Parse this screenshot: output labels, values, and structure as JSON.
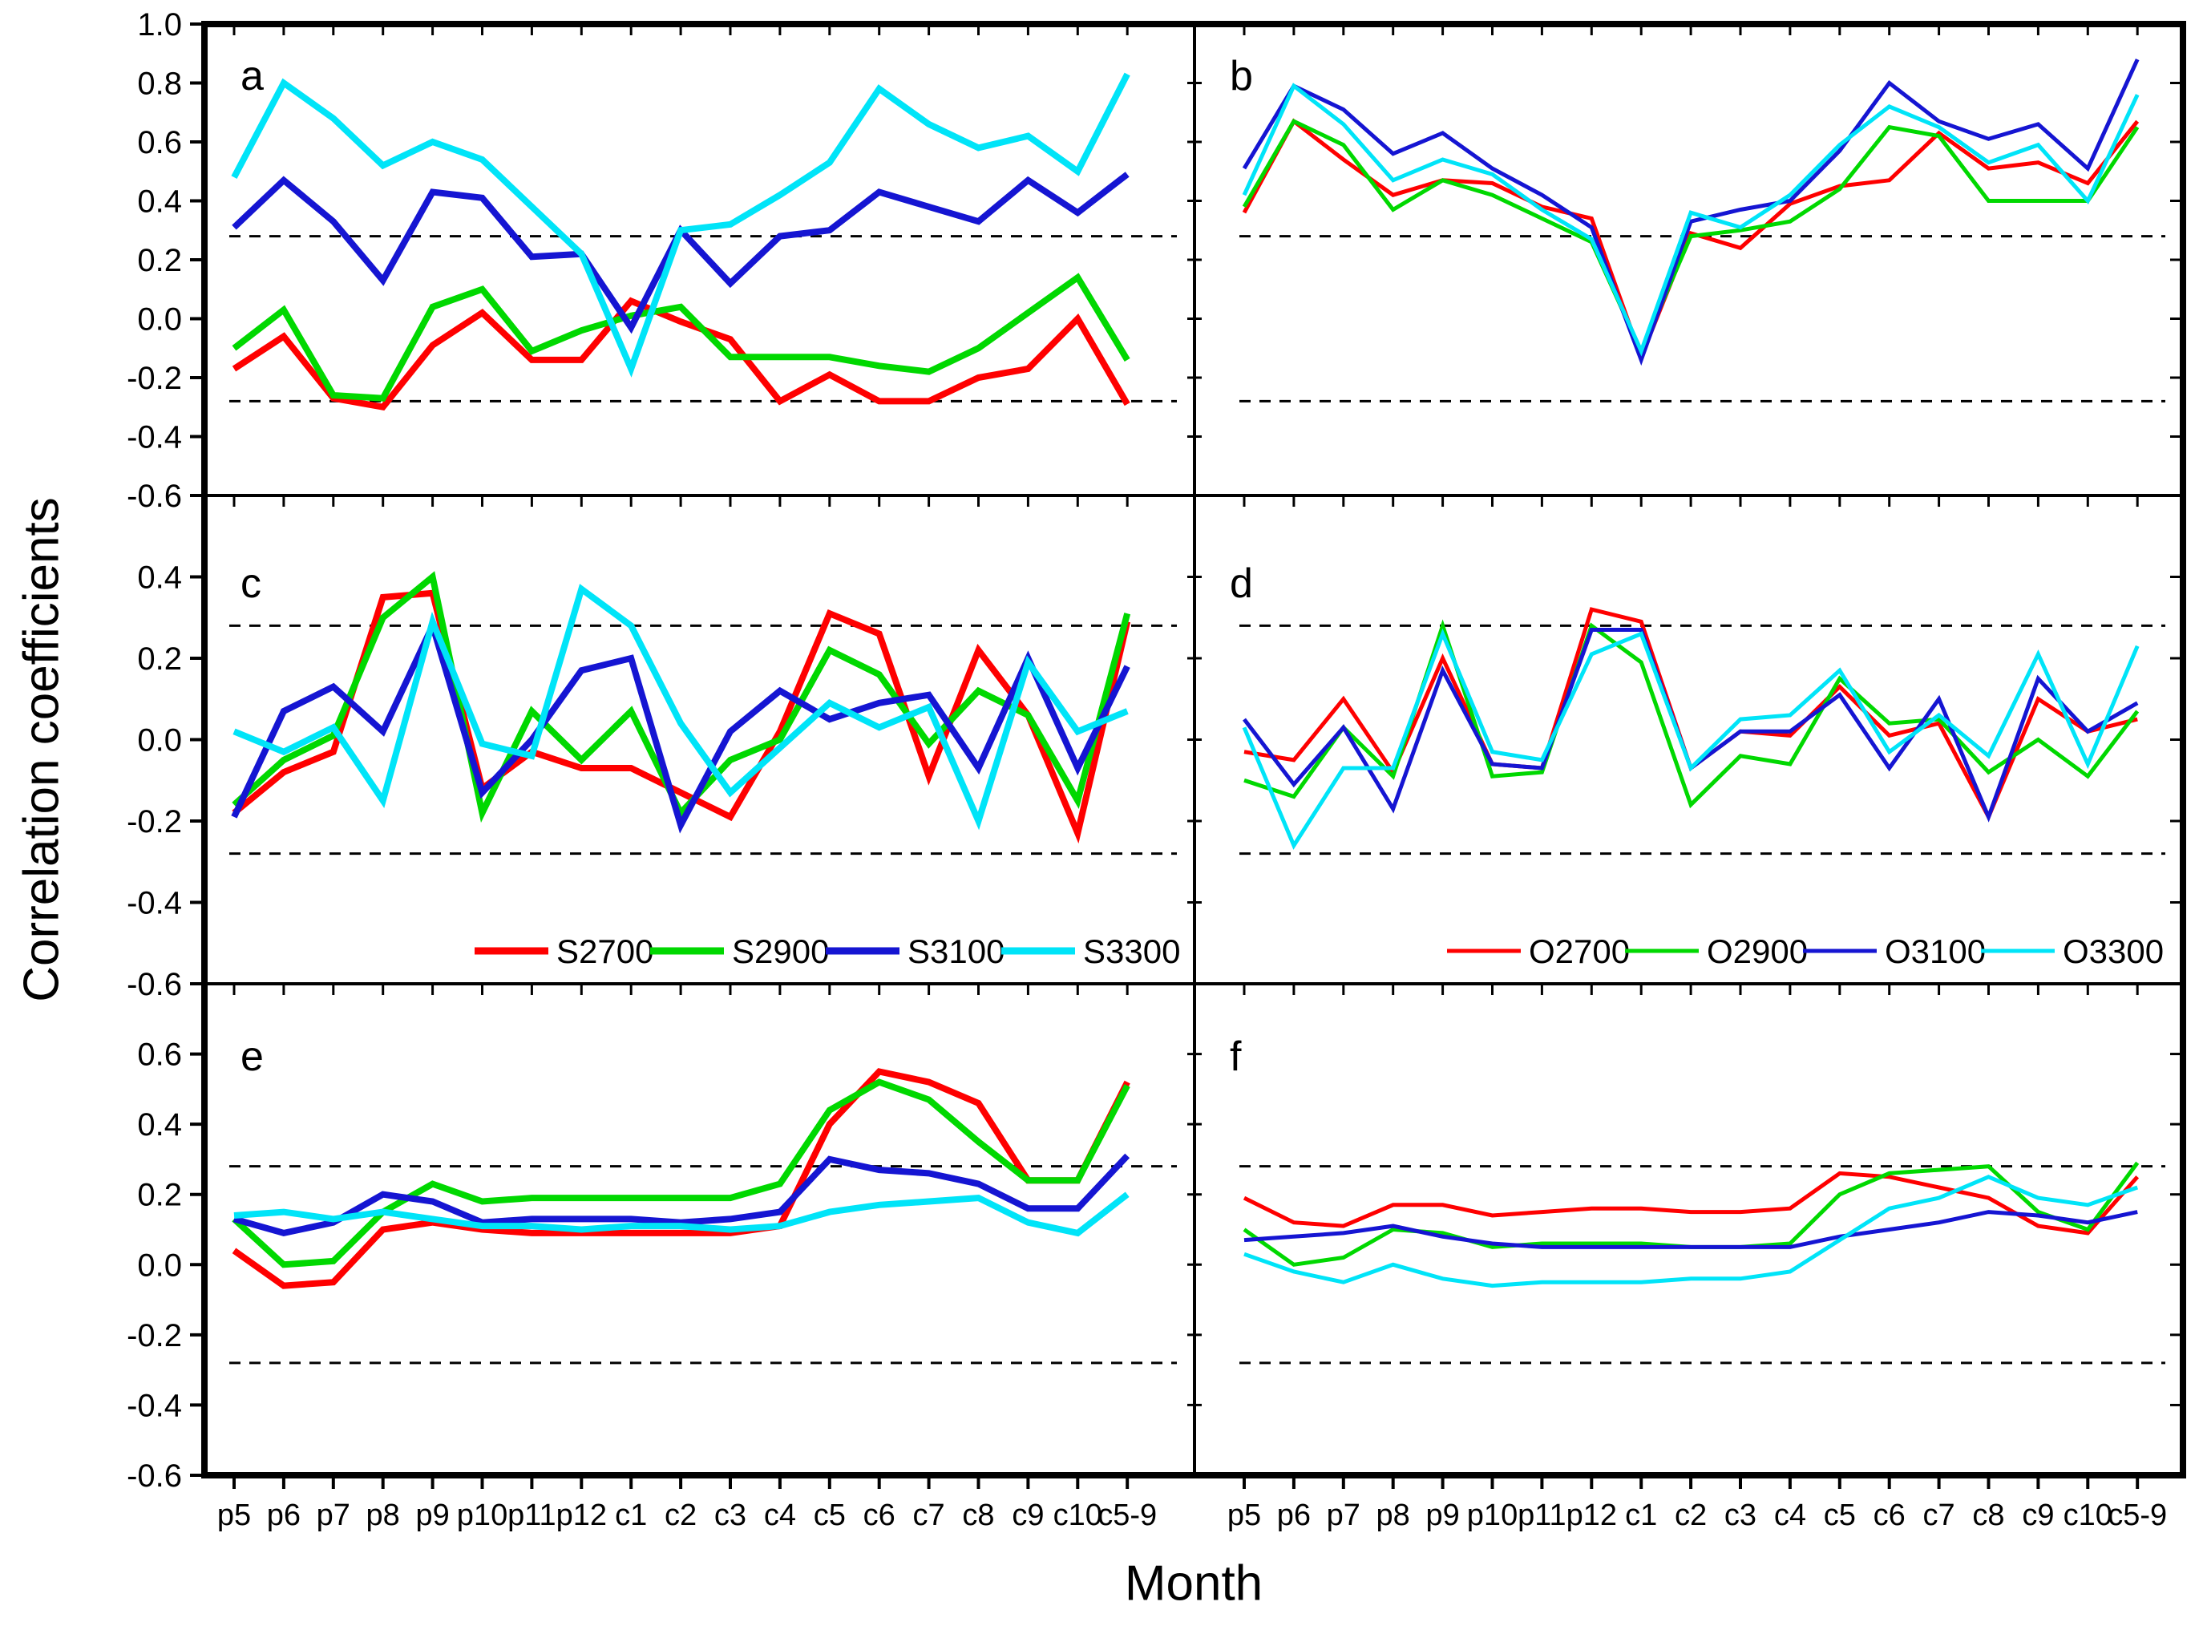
{
  "figure": {
    "ylabel": "Correlation coefficients",
    "xlabel": "Month",
    "background": "#ffffff",
    "frame_color": "#000000",
    "significance_lines": [
      0.28,
      -0.28
    ],
    "series_colors": {
      "2700": "#fe0000",
      "2900": "#00d800",
      "3100": "#1515d2",
      "3300": "#00e4f8"
    }
  },
  "chart_data": {
    "type": "line",
    "categories": [
      "p5",
      "p6",
      "p7",
      "p8",
      "p9",
      "p10",
      "p11",
      "p12",
      "c1",
      "c2",
      "c3",
      "c4",
      "c5",
      "c6",
      "c7",
      "c8",
      "c9",
      "c10",
      "c5-9"
    ],
    "rows": [
      {
        "ylim": [
          -0.6,
          1.0
        ],
        "ytick_labels": [
          "1.0",
          "0.8",
          "0.6",
          "0.4",
          "0.2",
          "0.0",
          "-0.2",
          "-0.4",
          "-0.6"
        ]
      },
      {
        "ylim": [
          -0.6,
          0.6
        ],
        "ytick_labels": [
          "0.4",
          "0.2",
          "0.0",
          "-0.2",
          "-0.4",
          "-0.6"
        ]
      },
      {
        "ylim": [
          -0.6,
          0.8
        ],
        "ytick_labels": [
          "0.6",
          "0.4",
          "0.2",
          "0.0",
          "-0.2",
          "-0.4",
          "-0.6"
        ]
      }
    ],
    "panels": [
      {
        "id": "a",
        "letter": "a",
        "row": 0,
        "col": 0,
        "series": [
          {
            "name": "S2700",
            "color": "2700",
            "values": [
              -0.17,
              -0.06,
              -0.27,
              -0.3,
              -0.09,
              0.02,
              -0.14,
              -0.14,
              0.06,
              -0.01,
              -0.07,
              -0.28,
              -0.19,
              -0.28,
              -0.28,
              -0.2,
              -0.17,
              0.0,
              -0.29
            ]
          },
          {
            "name": "S2900",
            "color": "2900",
            "values": [
              -0.1,
              0.03,
              -0.26,
              -0.27,
              0.04,
              0.1,
              -0.11,
              -0.04,
              0.01,
              0.04,
              -0.13,
              -0.13,
              -0.13,
              -0.16,
              -0.18,
              -0.1,
              0.02,
              0.14,
              -0.14
            ]
          },
          {
            "name": "S3100",
            "color": "3100",
            "values": [
              0.31,
              0.47,
              0.33,
              0.13,
              0.43,
              0.41,
              0.21,
              0.22,
              -0.03,
              0.3,
              0.12,
              0.28,
              0.3,
              0.43,
              0.38,
              0.33,
              0.47,
              0.36,
              0.49
            ]
          },
          {
            "name": "S3300",
            "color": "3300",
            "values": [
              0.48,
              0.8,
              0.68,
              0.52,
              0.6,
              0.54,
              0.38,
              0.22,
              -0.17,
              0.3,
              0.32,
              0.42,
              0.53,
              0.78,
              0.66,
              0.58,
              0.62,
              0.5,
              0.83
            ]
          }
        ]
      },
      {
        "id": "b",
        "letter": "b",
        "row": 0,
        "col": 1,
        "series": [
          {
            "name": "O2700",
            "color": "2700",
            "values": [
              0.36,
              0.67,
              0.54,
              0.42,
              0.47,
              0.46,
              0.38,
              0.34,
              -0.13,
              0.29,
              0.24,
              0.39,
              0.45,
              0.47,
              0.63,
              0.51,
              0.53,
              0.46,
              0.67
            ]
          },
          {
            "name": "O2900",
            "color": "2900",
            "values": [
              0.38,
              0.67,
              0.59,
              0.37,
              0.47,
              0.42,
              0.34,
              0.26,
              -0.11,
              0.28,
              0.3,
              0.33,
              0.44,
              0.65,
              0.62,
              0.4,
              0.4,
              0.4,
              0.65
            ]
          },
          {
            "name": "O3100",
            "color": "3100",
            "values": [
              0.51,
              0.79,
              0.71,
              0.56,
              0.63,
              0.51,
              0.42,
              0.31,
              -0.14,
              0.33,
              0.37,
              0.4,
              0.57,
              0.8,
              0.67,
              0.61,
              0.66,
              0.51,
              0.88
            ]
          },
          {
            "name": "O3300",
            "color": "3300",
            "values": [
              0.42,
              0.79,
              0.66,
              0.47,
              0.54,
              0.49,
              0.37,
              0.27,
              -0.11,
              0.36,
              0.31,
              0.42,
              0.59,
              0.72,
              0.65,
              0.53,
              0.59,
              0.4,
              0.76
            ]
          }
        ]
      },
      {
        "id": "c",
        "letter": "c",
        "row": 1,
        "col": 0,
        "legend": [
          "S2700",
          "S2900",
          "S3100",
          "S3300"
        ],
        "series": [
          {
            "name": "S2700",
            "color": "2700",
            "values": [
              -0.18,
              -0.08,
              -0.03,
              0.35,
              0.36,
              -0.12,
              -0.03,
              -0.07,
              -0.07,
              -0.13,
              -0.19,
              0.02,
              0.31,
              0.26,
              -0.09,
              0.22,
              0.06,
              -0.23,
              0.29
            ]
          },
          {
            "name": "S2900",
            "color": "2900",
            "values": [
              -0.16,
              -0.05,
              0.01,
              0.3,
              0.4,
              -0.18,
              0.07,
              -0.05,
              0.07,
              -0.18,
              -0.05,
              0.0,
              0.22,
              0.16,
              -0.01,
              0.12,
              0.06,
              -0.15,
              0.31
            ]
          },
          {
            "name": "S3100",
            "color": "3100",
            "values": [
              -0.19,
              0.07,
              0.13,
              0.02,
              0.28,
              -0.13,
              0.0,
              0.17,
              0.2,
              -0.21,
              0.02,
              0.12,
              0.05,
              0.09,
              0.11,
              -0.07,
              0.2,
              -0.07,
              0.18
            ]
          },
          {
            "name": "S3300",
            "color": "3300",
            "values": [
              0.02,
              -0.03,
              0.03,
              -0.15,
              0.29,
              -0.01,
              -0.04,
              0.37,
              0.28,
              0.04,
              -0.13,
              -0.02,
              0.09,
              0.03,
              0.08,
              -0.2,
              0.19,
              0.02,
              0.07
            ]
          }
        ]
      },
      {
        "id": "d",
        "letter": "d",
        "row": 1,
        "col": 1,
        "legend": [
          "O2700",
          "O2900",
          "O3100",
          "O3300"
        ],
        "series": [
          {
            "name": "O2700",
            "color": "2700",
            "values": [
              -0.03,
              -0.05,
              0.1,
              -0.08,
              0.2,
              -0.06,
              -0.07,
              0.32,
              0.29,
              -0.07,
              0.02,
              0.01,
              0.13,
              0.01,
              0.04,
              -0.19,
              0.1,
              0.02,
              0.05
            ]
          },
          {
            "name": "O2900",
            "color": "2900",
            "values": [
              -0.1,
              -0.14,
              0.03,
              -0.09,
              0.28,
              -0.09,
              -0.08,
              0.28,
              0.19,
              -0.16,
              -0.04,
              -0.06,
              0.15,
              0.04,
              0.05,
              -0.08,
              0.0,
              -0.09,
              0.07
            ]
          },
          {
            "name": "O3100",
            "color": "3100",
            "values": [
              0.05,
              -0.11,
              0.03,
              -0.17,
              0.17,
              -0.06,
              -0.07,
              0.27,
              0.27,
              -0.07,
              0.02,
              0.02,
              0.11,
              -0.07,
              0.1,
              -0.19,
              0.15,
              0.02,
              0.09
            ]
          },
          {
            "name": "O3300",
            "color": "3300",
            "values": [
              0.03,
              -0.26,
              -0.07,
              -0.07,
              0.26,
              -0.03,
              -0.05,
              0.21,
              0.26,
              -0.07,
              0.05,
              0.06,
              0.17,
              -0.03,
              0.06,
              -0.04,
              0.21,
              -0.06,
              0.23
            ]
          }
        ]
      },
      {
        "id": "e",
        "letter": "e",
        "row": 2,
        "col": 0,
        "series": [
          {
            "name": "S2700",
            "color": "2700",
            "values": [
              0.04,
              -0.06,
              -0.05,
              0.1,
              0.12,
              0.1,
              0.09,
              0.09,
              0.09,
              0.09,
              0.09,
              0.11,
              0.4,
              0.55,
              0.52,
              0.46,
              0.24,
              0.24,
              0.52
            ]
          },
          {
            "name": "S2900",
            "color": "2900",
            "values": [
              0.13,
              0.0,
              0.01,
              0.15,
              0.23,
              0.18,
              0.19,
              0.19,
              0.19,
              0.19,
              0.19,
              0.23,
              0.44,
              0.52,
              0.47,
              0.35,
              0.24,
              0.24,
              0.51
            ]
          },
          {
            "name": "S3100",
            "color": "3100",
            "values": [
              0.13,
              0.09,
              0.12,
              0.2,
              0.18,
              0.12,
              0.13,
              0.13,
              0.13,
              0.12,
              0.13,
              0.15,
              0.3,
              0.27,
              0.26,
              0.23,
              0.16,
              0.16,
              0.31
            ]
          },
          {
            "name": "S3300",
            "color": "3300",
            "values": [
              0.14,
              0.15,
              0.13,
              0.15,
              0.13,
              0.11,
              0.11,
              0.1,
              0.11,
              0.11,
              0.1,
              0.11,
              0.15,
              0.17,
              0.18,
              0.19,
              0.12,
              0.09,
              0.2
            ]
          }
        ]
      },
      {
        "id": "f",
        "letter": "f",
        "row": 2,
        "col": 1,
        "series": [
          {
            "name": "O2700",
            "color": "2700",
            "values": [
              0.19,
              0.12,
              0.11,
              0.17,
              0.17,
              0.14,
              0.15,
              0.16,
              0.16,
              0.15,
              0.15,
              0.16,
              0.26,
              0.25,
              0.22,
              0.19,
              0.11,
              0.09,
              0.25
            ]
          },
          {
            "name": "O2900",
            "color": "2900",
            "values": [
              0.1,
              0.0,
              0.02,
              0.1,
              0.09,
              0.05,
              0.06,
              0.06,
              0.06,
              0.05,
              0.05,
              0.06,
              0.2,
              0.26,
              0.27,
              0.28,
              0.15,
              0.1,
              0.29
            ]
          },
          {
            "name": "O3100",
            "color": "3100",
            "values": [
              0.07,
              0.08,
              0.09,
              0.11,
              0.08,
              0.06,
              0.05,
              0.05,
              0.05,
              0.05,
              0.05,
              0.05,
              0.08,
              0.1,
              0.12,
              0.15,
              0.14,
              0.12,
              0.15
            ]
          },
          {
            "name": "O3300",
            "color": "3300",
            "values": [
              0.03,
              -0.02,
              -0.05,
              0.0,
              -0.04,
              -0.06,
              -0.05,
              -0.05,
              -0.05,
              -0.04,
              -0.04,
              -0.02,
              0.07,
              0.16,
              0.19,
              0.25,
              0.19,
              0.17,
              0.22
            ]
          }
        ]
      }
    ]
  }
}
